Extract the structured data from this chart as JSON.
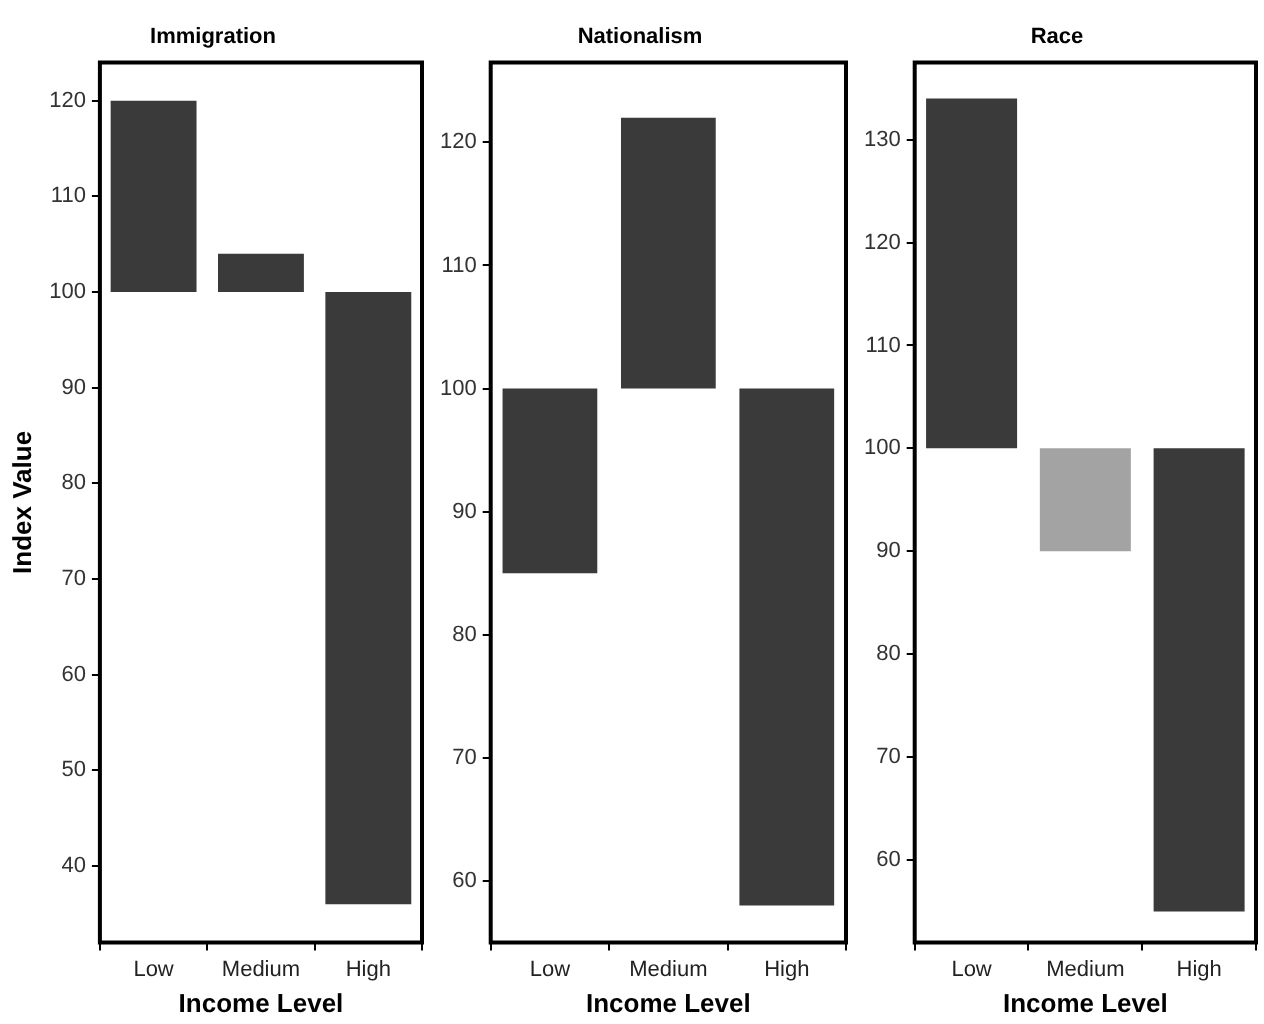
{
  "chart_data": [
    {
      "type": "bar",
      "title": "Immigration",
      "xlabel": "Income Level",
      "ylabel": "Index Value",
      "categories": [
        "Low",
        "Medium",
        "High"
      ],
      "base": [
        100,
        100,
        100
      ],
      "values": [
        20,
        4,
        -64
      ],
      "colors": [
        "#3a3a3a",
        "#3a3a3a",
        "#3a3a3a"
      ],
      "ylim": [
        32,
        124
      ],
      "yticks": [
        40,
        50,
        60,
        70,
        80,
        90,
        100,
        110,
        120
      ],
      "grid": false,
      "legend": false
    },
    {
      "type": "bar",
      "title": "Nationalism",
      "xlabel": "Income Level",
      "categories": [
        "Low",
        "Medium",
        "High"
      ],
      "base": [
        100,
        100,
        100
      ],
      "values": [
        -15,
        22,
        -42
      ],
      "colors": [
        "#3a3a3a",
        "#3a3a3a",
        "#3a3a3a"
      ],
      "ylim": [
        55,
        126.5
      ],
      "yticks": [
        60,
        70,
        80,
        90,
        100,
        110,
        120
      ],
      "grid": false,
      "legend": false
    },
    {
      "type": "bar",
      "title": "Race",
      "xlabel": "Income Level",
      "categories": [
        "Low",
        "Medium",
        "High"
      ],
      "base": [
        100,
        100,
        100
      ],
      "values": [
        34,
        -10,
        -45
      ],
      "colors": [
        "#3a3a3a",
        "#a3a3a3",
        "#3a3a3a"
      ],
      "ylim": [
        52,
        137.5
      ],
      "yticks": [
        60,
        70,
        80,
        90,
        100,
        110,
        120,
        130
      ],
      "grid": false,
      "legend": false
    }
  ]
}
